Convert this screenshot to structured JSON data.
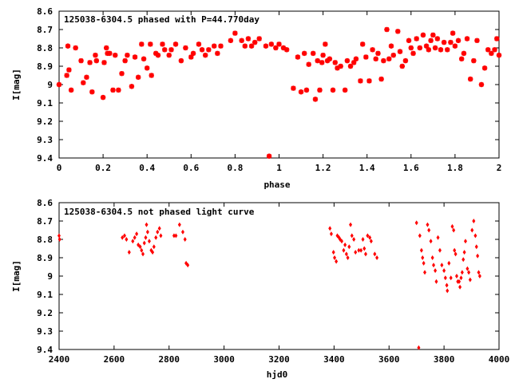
{
  "chart_data": [
    {
      "type": "scatter",
      "title": "125038-6304.5 phased with P=44.770day",
      "xlabel": "phase",
      "ylabel": "I[mag]",
      "xlim": [
        0,
        2
      ],
      "ylim": [
        9.4,
        8.6
      ],
      "y_inverted": true,
      "grid": false,
      "marker": "star",
      "color": "#ff0000",
      "xticks": [
        0,
        0.2,
        0.4,
        0.6,
        0.8,
        1,
        1.2,
        1.4,
        1.6,
        1.8,
        2
      ],
      "xtick_labels": [
        "0",
        "0.2",
        "0.4",
        "0.6",
        "0.8",
        "1",
        "1.2",
        "1.4",
        "1.6",
        "1.8",
        "2"
      ],
      "yticks": [
        8.6,
        8.7,
        8.8,
        8.9,
        9.0,
        9.1,
        9.2,
        9.3,
        9.4
      ],
      "ytick_labels": [
        "8.6",
        "8.7",
        "8.8",
        "8.9",
        "9",
        "9.1",
        "9.2",
        "9.3",
        "9.4"
      ],
      "series": [
        {
          "points": [
            [
              0.0,
              9.0
            ],
            [
              0.035,
              8.95
            ],
            [
              0.04,
              8.79
            ],
            [
              0.045,
              8.92
            ],
            [
              0.055,
              9.03
            ],
            [
              0.075,
              8.8
            ],
            [
              0.1,
              8.87
            ],
            [
              0.11,
              8.99
            ],
            [
              0.125,
              8.96
            ],
            [
              0.14,
              8.88
            ],
            [
              0.15,
              9.04
            ],
            [
              0.165,
              8.84
            ],
            [
              0.17,
              8.87
            ],
            [
              0.2,
              9.07
            ],
            [
              0.205,
              8.88
            ],
            [
              0.215,
              8.8
            ],
            [
              0.22,
              8.83
            ],
            [
              0.23,
              8.83
            ],
            [
              0.245,
              9.03
            ],
            [
              0.255,
              8.84
            ],
            [
              0.27,
              9.03
            ],
            [
              0.285,
              8.94
            ],
            [
              0.3,
              8.87
            ],
            [
              0.31,
              8.84
            ],
            [
              0.33,
              9.01
            ],
            [
              0.345,
              8.85
            ],
            [
              0.36,
              8.96
            ],
            [
              0.375,
              8.78
            ],
            [
              0.385,
              8.86
            ],
            [
              0.4,
              8.91
            ],
            [
              0.415,
              8.78
            ],
            [
              0.42,
              8.95
            ],
            [
              0.44,
              8.83
            ],
            [
              0.45,
              8.84
            ],
            [
              0.47,
              8.78
            ],
            [
              0.48,
              8.81
            ],
            [
              0.5,
              8.84
            ],
            [
              0.51,
              8.81
            ],
            [
              0.53,
              8.78
            ],
            [
              0.555,
              8.87
            ],
            [
              0.575,
              8.8
            ],
            [
              0.6,
              8.85
            ],
            [
              0.61,
              8.83
            ],
            [
              0.635,
              8.78
            ],
            [
              0.65,
              8.81
            ],
            [
              0.665,
              8.84
            ],
            [
              0.68,
              8.81
            ],
            [
              0.705,
              8.79
            ],
            [
              0.72,
              8.83
            ],
            [
              0.735,
              8.79
            ],
            [
              0.78,
              8.76
            ],
            [
              0.8,
              8.72
            ],
            [
              0.83,
              8.76
            ],
            [
              0.845,
              8.79
            ],
            [
              0.86,
              8.75
            ],
            [
              0.875,
              8.79
            ],
            [
              0.89,
              8.77
            ],
            [
              0.91,
              8.75
            ],
            [
              0.94,
              8.79
            ],
            [
              0.955,
              9.39
            ],
            [
              0.965,
              8.78
            ],
            [
              0.985,
              8.8
            ],
            [
              1.0,
              8.78
            ],
            [
              1.02,
              8.8
            ],
            [
              1.035,
              8.81
            ],
            [
              1.065,
              9.02
            ],
            [
              1.085,
              8.85
            ],
            [
              1.1,
              9.04
            ],
            [
              1.115,
              8.83
            ],
            [
              1.125,
              9.03
            ],
            [
              1.135,
              8.89
            ],
            [
              1.155,
              8.83
            ],
            [
              1.165,
              9.08
            ],
            [
              1.175,
              8.87
            ],
            [
              1.185,
              9.03
            ],
            [
              1.195,
              8.88
            ],
            [
              1.2,
              8.84
            ],
            [
              1.21,
              8.78
            ],
            [
              1.22,
              8.87
            ],
            [
              1.23,
              8.86
            ],
            [
              1.245,
              9.03
            ],
            [
              1.255,
              8.88
            ],
            [
              1.265,
              8.91
            ],
            [
              1.28,
              8.9
            ],
            [
              1.3,
              9.03
            ],
            [
              1.31,
              8.87
            ],
            [
              1.325,
              8.9
            ],
            [
              1.34,
              8.88
            ],
            [
              1.35,
              8.86
            ],
            [
              1.37,
              8.98
            ],
            [
              1.38,
              8.78
            ],
            [
              1.395,
              8.85
            ],
            [
              1.41,
              8.98
            ],
            [
              1.425,
              8.81
            ],
            [
              1.44,
              8.86
            ],
            [
              1.45,
              8.83
            ],
            [
              1.465,
              8.97
            ],
            [
              1.475,
              8.87
            ],
            [
              1.49,
              8.7
            ],
            [
              1.5,
              8.86
            ],
            [
              1.51,
              8.79
            ],
            [
              1.52,
              8.84
            ],
            [
              1.54,
              8.71
            ],
            [
              1.55,
              8.82
            ],
            [
              1.56,
              8.9
            ],
            [
              1.575,
              8.87
            ],
            [
              1.59,
              8.76
            ],
            [
              1.6,
              8.8
            ],
            [
              1.61,
              8.83
            ],
            [
              1.625,
              8.75
            ],
            [
              1.64,
              8.8
            ],
            [
              1.655,
              8.73
            ],
            [
              1.67,
              8.79
            ],
            [
              1.68,
              8.81
            ],
            [
              1.69,
              8.76
            ],
            [
              1.7,
              8.73
            ],
            [
              1.71,
              8.8
            ],
            [
              1.72,
              8.75
            ],
            [
              1.735,
              8.81
            ],
            [
              1.75,
              8.77
            ],
            [
              1.765,
              8.81
            ],
            [
              1.78,
              8.77
            ],
            [
              1.79,
              8.72
            ],
            [
              1.8,
              8.79
            ],
            [
              1.815,
              8.76
            ],
            [
              1.83,
              8.86
            ],
            [
              1.84,
              8.83
            ],
            [
              1.855,
              8.75
            ],
            [
              1.87,
              8.97
            ],
            [
              1.885,
              8.87
            ],
            [
              1.9,
              8.76
            ],
            [
              1.92,
              9.0
            ],
            [
              1.935,
              8.91
            ],
            [
              1.95,
              8.81
            ],
            [
              1.965,
              8.83
            ],
            [
              1.98,
              8.81
            ],
            [
              1.99,
              8.75
            ],
            [
              2.0,
              8.84
            ]
          ]
        }
      ]
    },
    {
      "type": "scatter",
      "title": "125038-6304.5 not phased light curve",
      "xlabel": "hjd0",
      "ylabel": "I[mag]",
      "xlim": [
        2400,
        4000
      ],
      "ylim": [
        9.4,
        8.6
      ],
      "y_inverted": true,
      "grid": false,
      "marker": "diamond",
      "color": "#ff0000",
      "xticks": [
        2400,
        2600,
        2800,
        3000,
        3200,
        3400,
        3600,
        3800,
        4000
      ],
      "xtick_labels": [
        "2400",
        "2600",
        "2800",
        "3000",
        "3200",
        "3400",
        "3600",
        "3800",
        "4000"
      ],
      "yticks": [
        8.6,
        8.7,
        8.8,
        8.9,
        9.0,
        9.1,
        9.2,
        9.3,
        9.4
      ],
      "ytick_labels": [
        "8.6",
        "8.7",
        "8.8",
        "8.9",
        "9",
        "9.1",
        "9.2",
        "9.3",
        "9.4"
      ],
      "series": [
        {
          "points": [
            [
              2400,
              8.78
            ],
            [
              2402,
              8.8
            ],
            [
              2630,
              8.79
            ],
            [
              2638,
              8.78
            ],
            [
              2645,
              8.8
            ],
            [
              2655,
              8.87
            ],
            [
              2668,
              8.81
            ],
            [
              2675,
              8.79
            ],
            [
              2682,
              8.77
            ],
            [
              2688,
              8.83
            ],
            [
              2695,
              8.84
            ],
            [
              2700,
              8.86
            ],
            [
              2705,
              8.88
            ],
            [
              2710,
              8.82
            ],
            [
              2715,
              8.79
            ],
            [
              2718,
              8.72
            ],
            [
              2722,
              8.76
            ],
            [
              2728,
              8.81
            ],
            [
              2735,
              8.86
            ],
            [
              2740,
              8.87
            ],
            [
              2745,
              8.84
            ],
            [
              2752,
              8.79
            ],
            [
              2758,
              8.76
            ],
            [
              2765,
              8.74
            ],
            [
              2770,
              8.78
            ],
            [
              2818,
              8.78
            ],
            [
              2825,
              8.78
            ],
            [
              2838,
              8.72
            ],
            [
              2850,
              8.76
            ],
            [
              2858,
              8.8
            ],
            [
              2862,
              8.93
            ],
            [
              2868,
              8.94
            ],
            [
              3385,
              8.74
            ],
            [
              3390,
              8.77
            ],
            [
              3398,
              8.87
            ],
            [
              3402,
              8.9
            ],
            [
              3408,
              8.92
            ],
            [
              3412,
              8.78
            ],
            [
              3418,
              8.79
            ],
            [
              3422,
              8.8
            ],
            [
              3428,
              8.81
            ],
            [
              3435,
              8.86
            ],
            [
              3440,
              8.83
            ],
            [
              3445,
              8.88
            ],
            [
              3450,
              8.9
            ],
            [
              3455,
              8.84
            ],
            [
              3460,
              8.72
            ],
            [
              3465,
              8.78
            ],
            [
              3472,
              8.8
            ],
            [
              3478,
              8.87
            ],
            [
              3490,
              8.86
            ],
            [
              3498,
              8.86
            ],
            [
              3505,
              8.8
            ],
            [
              3510,
              8.85
            ],
            [
              3515,
              8.88
            ],
            [
              3522,
              8.78
            ],
            [
              3530,
              8.79
            ],
            [
              3535,
              8.81
            ],
            [
              3548,
              8.88
            ],
            [
              3556,
              8.9
            ],
            [
              3700,
              8.71
            ],
            [
              3708,
              9.39
            ],
            [
              3712,
              8.78
            ],
            [
              3718,
              8.86
            ],
            [
              3722,
              8.9
            ],
            [
              3726,
              8.93
            ],
            [
              3730,
              8.98
            ],
            [
              3740,
              8.72
            ],
            [
              3745,
              8.75
            ],
            [
              3752,
              8.81
            ],
            [
              3758,
              8.9
            ],
            [
              3762,
              8.94
            ],
            [
              3768,
              8.97
            ],
            [
              3772,
              9.03
            ],
            [
              3778,
              8.79
            ],
            [
              3785,
              8.86
            ],
            [
              3792,
              8.94
            ],
            [
              3800,
              8.97
            ],
            [
              3805,
              9.01
            ],
            [
              3810,
              9.05
            ],
            [
              3812,
              9.08
            ],
            [
              3818,
              8.93
            ],
            [
              3825,
              9.01
            ],
            [
              3830,
              8.73
            ],
            [
              3835,
              8.75
            ],
            [
              3838,
              8.86
            ],
            [
              3842,
              8.88
            ],
            [
              3846,
              9.0
            ],
            [
              3850,
              9.03
            ],
            [
              3855,
              9.03
            ],
            [
              3858,
              9.06
            ],
            [
              3862,
              9.01
            ],
            [
              3866,
              8.98
            ],
            [
              3870,
              8.91
            ],
            [
              3874,
              8.87
            ],
            [
              3878,
              8.81
            ],
            [
              3885,
              8.96
            ],
            [
              3890,
              8.98
            ],
            [
              3895,
              9.02
            ],
            [
              3902,
              8.75
            ],
            [
              3908,
              8.7
            ],
            [
              3914,
              8.78
            ],
            [
              3918,
              8.84
            ],
            [
              3922,
              8.89
            ],
            [
              3926,
              8.98
            ],
            [
              3930,
              9.0
            ]
          ]
        }
      ]
    }
  ]
}
